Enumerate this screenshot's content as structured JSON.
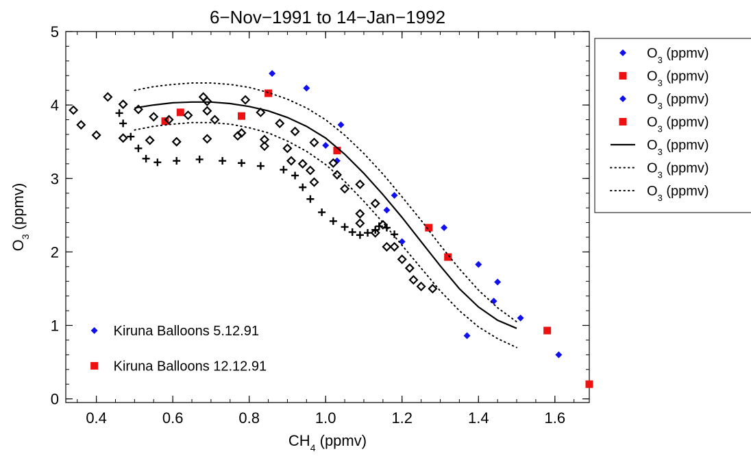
{
  "chart_data": {
    "type": "scatter",
    "title": "6−Nov−1991 to 14−Jan−1992",
    "xlabel": {
      "base": "CH",
      "sub": "4",
      "tail": " (ppmv)"
    },
    "ylabel": {
      "base": "O",
      "sub": "3",
      "tail": " (ppmv)"
    },
    "xlim": [
      0.32,
      1.69
    ],
    "ylim": [
      -0.05,
      5.0
    ],
    "xticks": [
      0.4,
      0.6,
      0.8,
      1.0,
      1.2,
      1.4,
      1.6
    ],
    "xtick_labels": [
      "0.4",
      "0.6",
      "0.8",
      "1.0",
      "1.2",
      "1.4",
      "1.6"
    ],
    "yticks": [
      0,
      1,
      2,
      3,
      4,
      5
    ],
    "ytick_labels": [
      "0",
      "1",
      "2",
      "3",
      "4",
      "5"
    ],
    "x_minor_step": 0.05,
    "y_minor_step": 0.2,
    "grid": false,
    "legend_placement": "outside-right",
    "colors": {
      "blue": "#1010ee",
      "red": "#ee1111",
      "black": "#000000"
    },
    "series": [
      {
        "name": "O₃ (ppmv)",
        "marker": "diamond-filled",
        "color": "#1010ee",
        "legend_label": {
          "base": "O",
          "sub": "3",
          "tail": " (ppmv)"
        },
        "points": [
          [
            0.86,
            4.43
          ],
          [
            0.95,
            4.23
          ],
          [
            1.04,
            3.73
          ],
          [
            1.0,
            3.45
          ],
          [
            1.03,
            3.24
          ],
          [
            1.18,
            2.77
          ],
          [
            1.16,
            2.57
          ],
          [
            1.31,
            2.33
          ],
          [
            1.2,
            2.14
          ],
          [
            1.4,
            1.83
          ],
          [
            1.45,
            1.59
          ],
          [
            1.44,
            1.33
          ],
          [
            1.51,
            1.1
          ],
          [
            1.37,
            0.86
          ],
          [
            1.61,
            0.6
          ]
        ]
      },
      {
        "name": "O₃ (ppmv)",
        "marker": "square-filled",
        "color": "#ee1111",
        "legend_label": {
          "base": "O",
          "sub": "3",
          "tail": " (ppmv)"
        },
        "points": [
          [
            0.85,
            4.16
          ],
          [
            0.62,
            3.9
          ],
          [
            0.58,
            3.78
          ],
          [
            0.78,
            3.85
          ],
          [
            1.03,
            3.38
          ],
          [
            1.27,
            2.33
          ],
          [
            1.32,
            1.93
          ],
          [
            1.58,
            0.93
          ],
          [
            1.69,
            0.2
          ]
        ]
      },
      {
        "name": "O₃ (ppmv)",
        "marker": "diamond-filled",
        "color": "#1010ee",
        "legend_label": {
          "base": "O",
          "sub": "3",
          "tail": " (ppmv)"
        },
        "points": []
      },
      {
        "name": "O₃ (ppmv)",
        "marker": "square-filled",
        "color": "#ee1111",
        "legend_label": {
          "base": "O",
          "sub": "3",
          "tail": " (ppmv)"
        },
        "points": []
      },
      {
        "name": "O₃ (ppmv)",
        "marker": "line-solid",
        "color": "#000000",
        "legend_label": {
          "base": "O",
          "sub": "3",
          "tail": " (ppmv)"
        },
        "points": [
          [
            0.5,
            3.96
          ],
          [
            0.55,
            4.0
          ],
          [
            0.6,
            4.03
          ],
          [
            0.65,
            4.04
          ],
          [
            0.7,
            4.04
          ],
          [
            0.75,
            4.02
          ],
          [
            0.8,
            3.98
          ],
          [
            0.85,
            3.92
          ],
          [
            0.9,
            3.83
          ],
          [
            0.95,
            3.71
          ],
          [
            1.0,
            3.55
          ],
          [
            1.05,
            3.33
          ],
          [
            1.1,
            3.07
          ],
          [
            1.15,
            2.78
          ],
          [
            1.2,
            2.47
          ],
          [
            1.25,
            2.14
          ],
          [
            1.3,
            1.81
          ],
          [
            1.35,
            1.5
          ],
          [
            1.4,
            1.25
          ],
          [
            1.45,
            1.07
          ],
          [
            1.5,
            0.96
          ]
        ]
      },
      {
        "name": "O₃ (ppmv)",
        "marker": "line-dotted",
        "color": "#000000",
        "legend_label": {
          "base": "O",
          "sub": "3",
          "tail": " (ppmv)"
        },
        "points": [
          [
            0.5,
            4.2
          ],
          [
            0.55,
            4.25
          ],
          [
            0.6,
            4.28
          ],
          [
            0.65,
            4.3
          ],
          [
            0.7,
            4.3
          ],
          [
            0.75,
            4.28
          ],
          [
            0.8,
            4.24
          ],
          [
            0.85,
            4.17
          ],
          [
            0.9,
            4.08
          ],
          [
            0.95,
            3.96
          ],
          [
            1.0,
            3.8
          ],
          [
            1.05,
            3.59
          ],
          [
            1.1,
            3.34
          ],
          [
            1.15,
            3.06
          ],
          [
            1.2,
            2.75
          ],
          [
            1.25,
            2.43
          ],
          [
            1.3,
            2.09
          ],
          [
            1.35,
            1.77
          ],
          [
            1.4,
            1.48
          ],
          [
            1.45,
            1.24
          ],
          [
            1.5,
            1.05
          ]
        ]
      },
      {
        "name": "O₃ (ppmv)",
        "marker": "line-dotted",
        "color": "#000000",
        "legend_label": {
          "base": "O",
          "sub": "3",
          "tail": " (ppmv)"
        },
        "points": [
          [
            0.5,
            3.66
          ],
          [
            0.55,
            3.71
          ],
          [
            0.6,
            3.74
          ],
          [
            0.65,
            3.76
          ],
          [
            0.7,
            3.76
          ],
          [
            0.75,
            3.74
          ],
          [
            0.8,
            3.69
          ],
          [
            0.85,
            3.62
          ],
          [
            0.9,
            3.51
          ],
          [
            0.95,
            3.37
          ],
          [
            1.0,
            3.19
          ],
          [
            1.05,
            2.96
          ],
          [
            1.1,
            2.69
          ],
          [
            1.15,
            2.4
          ],
          [
            1.2,
            2.09
          ],
          [
            1.25,
            1.78
          ],
          [
            1.3,
            1.47
          ],
          [
            1.35,
            1.2
          ],
          [
            1.4,
            0.98
          ],
          [
            1.45,
            0.82
          ],
          [
            1.5,
            0.7
          ]
        ]
      },
      {
        "name": "",
        "marker": "diamond-open",
        "color": "#000000",
        "points": [
          [
            0.34,
            3.93
          ],
          [
            0.36,
            3.73
          ],
          [
            0.4,
            3.59
          ],
          [
            0.43,
            4.11
          ],
          [
            0.47,
            4.01
          ],
          [
            0.47,
            3.55
          ],
          [
            0.51,
            3.94
          ],
          [
            0.54,
            3.52
          ],
          [
            0.55,
            3.84
          ],
          [
            0.59,
            3.8
          ],
          [
            0.61,
            3.5
          ],
          [
            0.64,
            3.86
          ],
          [
            0.68,
            4.11
          ],
          [
            0.69,
            4.05
          ],
          [
            0.69,
            3.92
          ],
          [
            0.69,
            3.54
          ],
          [
            0.71,
            3.8
          ],
          [
            0.77,
            3.58
          ],
          [
            0.78,
            3.62
          ],
          [
            0.79,
            4.07
          ],
          [
            0.83,
            3.9
          ],
          [
            0.84,
            3.53
          ],
          [
            0.84,
            3.44
          ],
          [
            0.88,
            3.75
          ],
          [
            0.9,
            3.41
          ],
          [
            0.91,
            3.24
          ],
          [
            0.92,
            3.64
          ],
          [
            0.94,
            3.2
          ],
          [
            0.96,
            3.11
          ],
          [
            0.97,
            3.49
          ],
          [
            0.97,
            2.95
          ],
          [
            1.02,
            3.21
          ],
          [
            1.03,
            3.05
          ],
          [
            1.05,
            2.86
          ],
          [
            1.09,
            2.92
          ],
          [
            1.09,
            2.52
          ],
          [
            1.09,
            2.39
          ],
          [
            1.13,
            2.66
          ],
          [
            1.13,
            2.26
          ],
          [
            1.15,
            2.37
          ],
          [
            1.16,
            2.07
          ],
          [
            1.18,
            2.07
          ],
          [
            1.2,
            1.9
          ],
          [
            1.22,
            1.78
          ],
          [
            1.23,
            1.62
          ],
          [
            1.25,
            1.53
          ],
          [
            1.28,
            1.5
          ]
        ]
      },
      {
        "name": "",
        "marker": "plus",
        "color": "#000000",
        "points": [
          [
            0.46,
            3.89
          ],
          [
            0.47,
            3.75
          ],
          [
            0.49,
            3.57
          ],
          [
            0.51,
            3.41
          ],
          [
            0.53,
            3.27
          ],
          [
            0.56,
            3.22
          ],
          [
            0.61,
            3.24
          ],
          [
            0.67,
            3.26
          ],
          [
            0.73,
            3.24
          ],
          [
            0.78,
            3.21
          ],
          [
            0.83,
            3.17
          ],
          [
            0.89,
            3.12
          ],
          [
            0.92,
            3.04
          ],
          [
            0.94,
            2.88
          ],
          [
            0.96,
            2.72
          ],
          [
            0.99,
            2.54
          ],
          [
            1.02,
            2.42
          ],
          [
            1.05,
            2.34
          ],
          [
            1.07,
            2.27
          ],
          [
            1.09,
            2.23
          ],
          [
            1.11,
            2.26
          ],
          [
            1.13,
            2.3
          ],
          [
            1.14,
            2.35
          ],
          [
            1.16,
            2.33
          ],
          [
            1.18,
            2.24
          ]
        ]
      }
    ],
    "annotations": [
      {
        "marker": "diamond-filled",
        "color": "#1010ee",
        "text": "Kiruna Balloons 5.12.91",
        "x": 0.4,
        "y": 0.93
      },
      {
        "marker": "square-filled",
        "color": "#ee1111",
        "text": "Kiruna Balloons 12.12.91",
        "x": 0.4,
        "y": 0.45
      }
    ]
  }
}
